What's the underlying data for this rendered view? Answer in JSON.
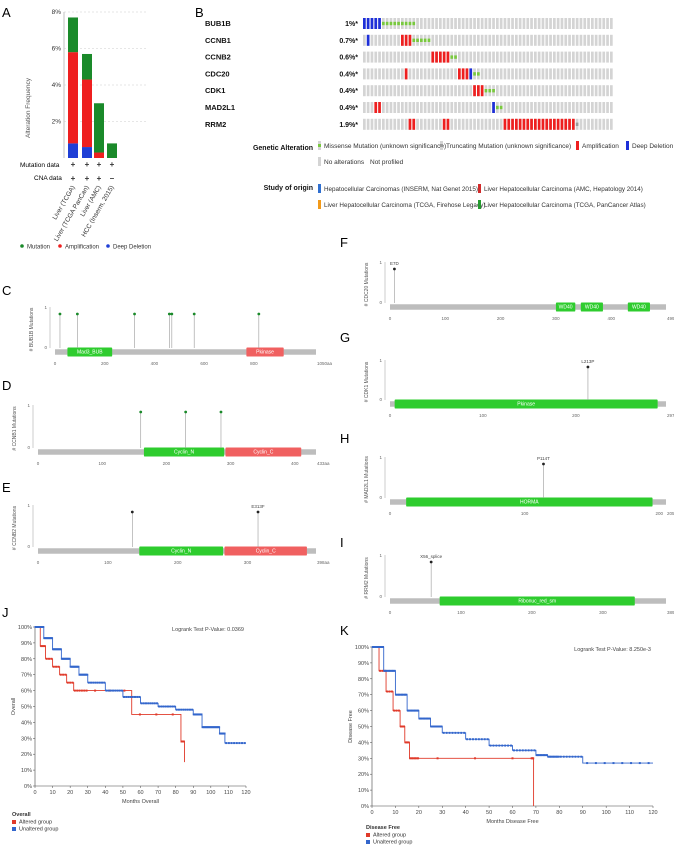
{
  "panels": {
    "A": "A",
    "B": "B",
    "C": "C",
    "D": "D",
    "E": "E",
    "F": "F",
    "G": "G",
    "H": "H",
    "I": "I",
    "J": "J",
    "K": "K"
  },
  "panel_a": {
    "ylabel": "Alteration Frequency",
    "yticks": [
      "8%",
      "6%",
      "4%",
      "2%"
    ],
    "row_labels": [
      "Mutation data",
      "CNA data"
    ],
    "mutation_marks": [
      "+",
      "+",
      "+",
      "+"
    ],
    "cna_marks": [
      "+",
      "+",
      "+",
      "–"
    ],
    "studies": [
      "Liver (TCGA)",
      "Liver (TCGA PanCan)",
      "Liver (AMC)",
      "HCC (Inserm, 2015)"
    ],
    "legend": [
      "Mutation",
      "Amplification",
      "Deep Deletion"
    ],
    "colors": {
      "mutation": "#1a8a2a",
      "amplification": "#ee1f1f",
      "deletion": "#1f3fd6"
    }
  },
  "chart_data": [
    {
      "type": "bar",
      "id": "A",
      "categories": [
        "Liver (TCGA)",
        "Liver (TCGA PanCan)",
        "Liver (AMC)",
        "HCC (Inserm, 2015)"
      ],
      "series": [
        {
          "name": "Deep Deletion",
          "values": [
            0.8,
            0.6,
            0.0,
            0.0
          ]
        },
        {
          "name": "Amplification",
          "values": [
            5.0,
            3.7,
            0.3,
            0.0
          ]
        },
        {
          "name": "Mutation",
          "values": [
            1.9,
            1.4,
            2.7,
            0.8
          ]
        }
      ],
      "ylim": [
        0,
        8
      ]
    },
    {
      "type": "line",
      "id": "J",
      "title": "Logrank Test P-Value: 0.0369",
      "xlabel": "Months Overall",
      "ylabel": "Overall",
      "xticks": [
        0,
        10,
        20,
        30,
        40,
        50,
        60,
        70,
        80,
        90,
        100,
        110,
        120
      ],
      "yticks": [
        "0%",
        "10%",
        "20%",
        "30%",
        "40%",
        "50%",
        "60%",
        "70%",
        "80%",
        "90%",
        "100%"
      ],
      "xlim": [
        0,
        120
      ],
      "ylim": [
        0,
        100
      ],
      "series": [
        {
          "name": "Altered group",
          "x": [
            0,
            3,
            6,
            10,
            14,
            18,
            22,
            26,
            30,
            55,
            83,
            85
          ],
          "y": [
            100,
            88,
            80,
            75,
            70,
            65,
            60,
            60,
            60,
            45,
            28,
            15
          ]
        },
        {
          "name": "Unaltered group",
          "x": [
            0,
            5,
            10,
            15,
            20,
            25,
            30,
            40,
            50,
            60,
            70,
            80,
            90,
            95,
            100,
            105,
            108,
            120
          ],
          "y": [
            100,
            93,
            86,
            80,
            75,
            70,
            65,
            60,
            56,
            52,
            50,
            48,
            45,
            37,
            37,
            33,
            27,
            27
          ]
        }
      ],
      "legend_title": "Overall",
      "legend": [
        "Altered group",
        "Unaltered group"
      ]
    },
    {
      "type": "line",
      "id": "K",
      "title": "Logrank Test P-Value: 8.250e-3",
      "xlabel": "Months Disease Free",
      "ylabel": "Disease Free",
      "xticks": [
        0,
        10,
        20,
        30,
        40,
        50,
        60,
        70,
        80,
        90,
        100,
        110,
        120
      ],
      "yticks": [
        "0%",
        "10%",
        "20%",
        "30%",
        "40%",
        "50%",
        "60%",
        "70%",
        "80%",
        "90%",
        "100%"
      ],
      "xlim": [
        0,
        120
      ],
      "ylim": [
        0,
        100
      ],
      "series": [
        {
          "name": "Altered group",
          "x": [
            0,
            3,
            6,
            9,
            12,
            14,
            16,
            18,
            20,
            68,
            69
          ],
          "y": [
            100,
            85,
            72,
            60,
            50,
            40,
            30,
            30,
            30,
            30,
            0
          ]
        },
        {
          "name": "Unaltered group",
          "x": [
            0,
            5,
            10,
            15,
            20,
            25,
            30,
            40,
            50,
            60,
            70,
            75,
            80,
            90,
            120
          ],
          "y": [
            100,
            85,
            70,
            60,
            55,
            50,
            46,
            42,
            38,
            35,
            32,
            31,
            31,
            27,
            27
          ]
        }
      ],
      "legend_title": "Disease Free",
      "legend": [
        "Altered group",
        "Unaltered group"
      ]
    }
  ],
  "oncoprint": {
    "genes": [
      {
        "name": "BUB1B",
        "pct": "1%*",
        "alts": [
          [
            "d",
            0,
            5
          ],
          [
            "m",
            5,
            9
          ]
        ]
      },
      {
        "name": "CCNB1",
        "pct": "0.7%*",
        "alts": [
          [
            "d",
            1,
            1
          ],
          [
            "a",
            10,
            3
          ],
          [
            "m",
            13,
            5
          ]
        ]
      },
      {
        "name": "CCNB2",
        "pct": "0.6%*",
        "alts": [
          [
            "a",
            18,
            5
          ],
          [
            "m",
            23,
            2
          ]
        ]
      },
      {
        "name": "CDC20",
        "pct": "0.4%*",
        "alts": [
          [
            "a",
            11,
            1
          ],
          [
            "a",
            25,
            3
          ],
          [
            "d",
            28,
            1
          ],
          [
            "m",
            29,
            2
          ]
        ]
      },
      {
        "name": "CDK1",
        "pct": "0.4%*",
        "alts": [
          [
            "a",
            29,
            3
          ],
          [
            "m",
            32,
            3
          ]
        ]
      },
      {
        "name": "MAD2L1",
        "pct": "0.4%*",
        "alts": [
          [
            "a",
            3,
            2
          ],
          [
            "d",
            34,
            1
          ],
          [
            "m",
            35,
            2
          ]
        ]
      },
      {
        "name": "RRM2",
        "pct": "1.9%*",
        "alts": [
          [
            "a",
            12,
            2
          ],
          [
            "a",
            21,
            2
          ],
          [
            "a",
            37,
            19
          ],
          [
            "g",
            56,
            1
          ]
        ]
      }
    ],
    "total_cols": 66,
    "genetic_alteration_label": "Genetic Alteration",
    "legend": {
      "missense": "Missense Mutation (unknown significance)",
      "truncating": "Truncating Mutation (unknown significance)",
      "amplification": "Amplification",
      "deep_deletion": "Deep Deletion",
      "no_alterations": "No alterations",
      "not_profiled": "Not profiled"
    },
    "study_label": "Study of origin",
    "studies": [
      "Hepatocellular Carcinomas (INSERM, Nat Genet 2015)",
      "Liver Hepatocellular Carcinoma (AMC, Hepatology 2014)",
      "Liver Hepatocellular Carcinoma (TCGA, Firehose Legacy)",
      "Liver Hepatocellular Carcinoma (TCGA, PanCancer Atlas)"
    ],
    "study_colors": [
      "#2f6fd0",
      "#d12a2a",
      "#f29a1a",
      "#239a2e"
    ]
  },
  "lollipops": [
    {
      "id": "C",
      "ylabel": "# BUB1B Mutations",
      "length_label": "1050aa",
      "length": 1050,
      "domains": [
        {
          "name": "Mad3_BUB",
          "start": 50,
          "end": 230,
          "color": "#2ecc2e"
        },
        {
          "name": "Pkinase",
          "start": 770,
          "end": 920,
          "color": "#f06060"
        }
      ],
      "ticks": [
        0,
        200,
        400,
        600,
        800
      ],
      "muts": [
        20,
        90,
        320,
        460,
        470,
        560,
        820
      ],
      "mut_label": ""
    },
    {
      "id": "D",
      "ylabel": "# CCNB1 Mutations",
      "length_label": "433aa",
      "length": 433,
      "domains": [
        {
          "name": "Cyclin_N",
          "start": 165,
          "end": 290,
          "color": "#2ecc2e"
        },
        {
          "name": "Cyclin_C",
          "start": 292,
          "end": 410,
          "color": "#f06060"
        }
      ],
      "ticks": [
        0,
        100,
        200,
        300,
        400
      ],
      "muts": [
        160,
        230,
        285
      ],
      "mut_label": ""
    },
    {
      "id": "E",
      "ylabel": "# CCNB2 Mutations",
      "length_label": "398aa",
      "length": 398,
      "domains": [
        {
          "name": "Cyclin_N",
          "start": 145,
          "end": 265,
          "color": "#2ecc2e"
        },
        {
          "name": "Cyclin_C",
          "start": 267,
          "end": 385,
          "color": "#f06060"
        }
      ],
      "ticks": [
        0,
        100,
        200,
        300
      ],
      "muts": [
        135,
        315
      ],
      "mut_label": "E313F",
      "mut_label_at": 315
    },
    {
      "id": "F",
      "ylabel": "# CDC20 Mutations",
      "length_label": "499aa",
      "length": 499,
      "domains": [
        {
          "name": "WD40",
          "start": 300,
          "end": 335,
          "color": "#2ecc2e"
        },
        {
          "name": "WD40",
          "start": 345,
          "end": 385,
          "color": "#2ecc2e"
        },
        {
          "name": "WD40",
          "start": 430,
          "end": 470,
          "color": "#2ecc2e"
        }
      ],
      "ticks": [
        0,
        100,
        200,
        300,
        400
      ],
      "muts": [
        8
      ],
      "mut_label": "E7D",
      "mut_label_at": 8
    },
    {
      "id": "G",
      "ylabel": "# CDK1 Mutations",
      "length_label": "297aa",
      "length": 297,
      "domains": [
        {
          "name": "Pkinase",
          "start": 5,
          "end": 288,
          "color": "#2ecc2e"
        }
      ],
      "ticks": [
        0,
        100,
        200
      ],
      "muts": [
        213
      ],
      "mut_label": "L213P",
      "mut_label_at": 213
    },
    {
      "id": "H",
      "ylabel": "# MAD2L1 Mutations",
      "length_label": "205aa",
      "length": 205,
      "domains": [
        {
          "name": "HORMA",
          "start": 12,
          "end": 195,
          "color": "#2ecc2e"
        }
      ],
      "ticks": [
        0,
        100,
        200
      ],
      "muts": [
        114
      ],
      "mut_label": "P114T",
      "mut_label_at": 114
    },
    {
      "id": "I",
      "ylabel": "# RRM2 Mutations",
      "length_label": "389aa",
      "length": 389,
      "domains": [
        {
          "name": "Ribonuc_red_sm",
          "start": 70,
          "end": 345,
          "color": "#2ecc2e"
        }
      ],
      "ticks": [
        0,
        100,
        200,
        300
      ],
      "muts": [
        58
      ],
      "mut_label": "X56_splice",
      "mut_label_at": 58
    }
  ]
}
